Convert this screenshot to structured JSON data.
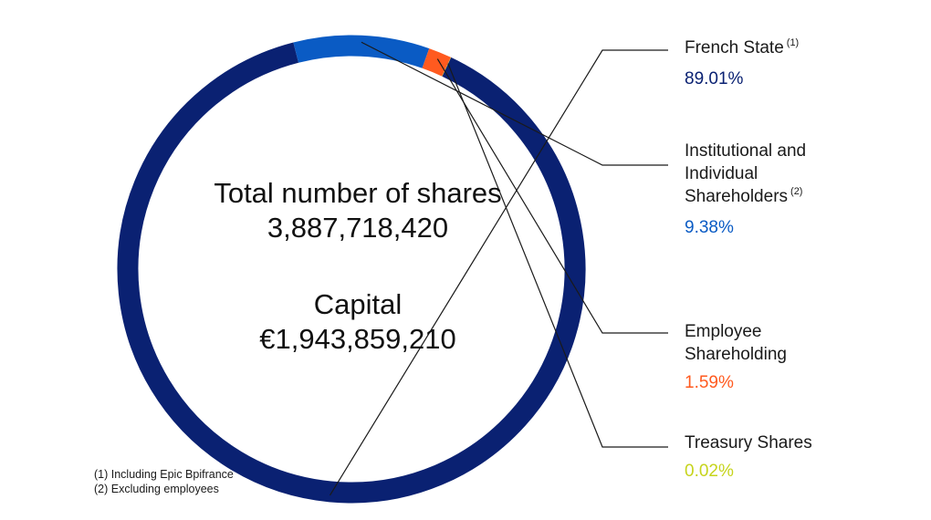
{
  "chart_data": {
    "type": "pie",
    "donut": true,
    "categories": [
      "French State",
      "Institutional and Individual Shareholders",
      "Employee Shareholding",
      "Treasury Shares"
    ],
    "values": [
      89.01,
      9.38,
      1.59,
      0.02
    ],
    "value_labels": [
      "89.01%",
      "9.38%",
      "1.59%",
      "0.02%"
    ],
    "label_notes": [
      "(1)",
      "(2)",
      "",
      ""
    ],
    "colors": [
      "#0a2172",
      "#0a5bc4",
      "#ff5a1f",
      "#c6d41c"
    ],
    "legend_placement": "right",
    "center_text": {
      "shares_title": "Total number of shares",
      "shares_value": "3,887,718,420",
      "capital_title": "Capital",
      "capital_value": "€1,943,859,210"
    },
    "footnotes": [
      "(1) Including Epic Bpifrance",
      "(2) Excluding employees"
    ]
  }
}
